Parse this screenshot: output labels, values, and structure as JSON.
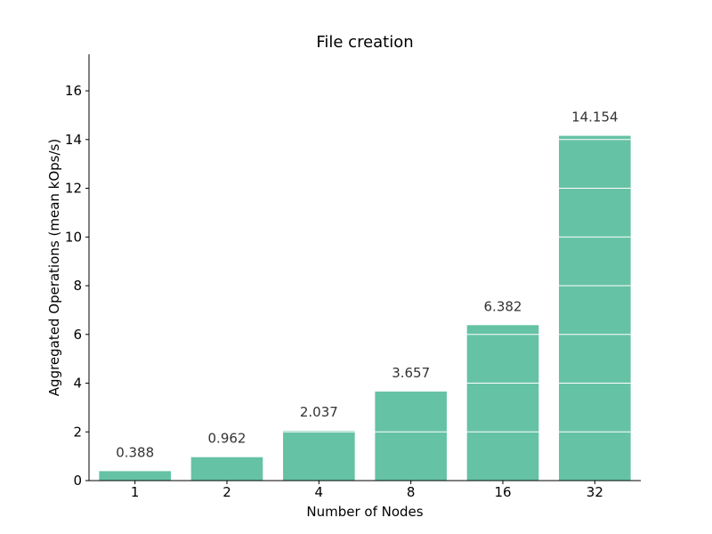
{
  "chart_data": {
    "type": "bar",
    "title": "File creation",
    "xlabel": "Number of Nodes",
    "ylabel": "Aggregated Operations (mean kOps/s)",
    "categories": [
      "1",
      "2",
      "4",
      "8",
      "16",
      "32"
    ],
    "values": [
      0.388,
      0.962,
      2.037,
      3.657,
      6.382,
      14.154
    ],
    "value_labels": [
      "0.388",
      "0.962",
      "2.037",
      "3.657",
      "6.382",
      "14.154"
    ],
    "ylim": [
      0,
      17.5
    ],
    "yticks": [
      0,
      2,
      4,
      6,
      8,
      10,
      12,
      14,
      16
    ],
    "grid": true,
    "bar_color": "#66c2a5",
    "grid_color": "#ffffff"
  }
}
